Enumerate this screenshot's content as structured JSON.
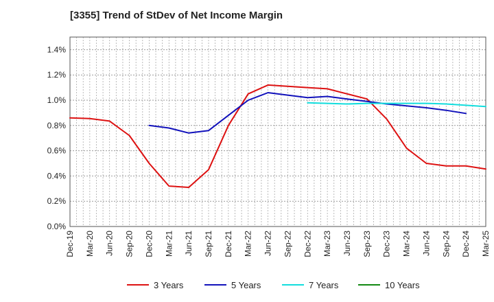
{
  "title": "[3355]  Trend of StDev of Net Income Margin",
  "chart_data": {
    "type": "line",
    "title": "[3355]  Trend of StDev of Net Income Margin",
    "xlabel": "",
    "ylabel": "",
    "ylim": [
      0,
      1.5
    ],
    "y_ticks": [
      0,
      0.2,
      0.4,
      0.6,
      0.8,
      1.0,
      1.2,
      1.4
    ],
    "y_tick_labels": [
      "0.0%",
      "0.2%",
      "0.4%",
      "0.6%",
      "0.8%",
      "1.0%",
      "1.2%",
      "1.4%"
    ],
    "x_tick_labels": [
      "Dec-19",
      "Mar-20",
      "Jun-20",
      "Sep-20",
      "Dec-20",
      "Mar-21",
      "Jun-21",
      "Sep-21",
      "Dec-21",
      "Mar-22",
      "Jun-22",
      "Sep-22",
      "Dec-22",
      "Mar-23",
      "Jun-23",
      "Sep-23",
      "Dec-23",
      "Mar-24",
      "Jun-24",
      "Sep-24",
      "Dec-24",
      "Mar-25"
    ],
    "grid": true,
    "legend_position": "bottom",
    "series": [
      {
        "name": "3 Years",
        "color": "#dd1111",
        "values": [
          0.86,
          0.855,
          0.835,
          0.72,
          0.5,
          0.32,
          0.31,
          0.45,
          0.8,
          1.05,
          1.12,
          1.11,
          1.1,
          1.09,
          1.05,
          1.01,
          0.85,
          0.62,
          0.5,
          0.48,
          0.48,
          0.455
        ],
        "start_index": 0
      },
      {
        "name": "5 Years",
        "color": "#1111bb",
        "values": [
          0.8,
          0.78,
          0.74,
          0.76,
          0.88,
          1.0,
          1.06,
          1.04,
          1.02,
          1.03,
          1.01,
          0.99,
          0.97,
          0.955,
          0.94,
          0.92,
          0.895
        ],
        "start_index": 4
      },
      {
        "name": "7 Years",
        "color": "#11dddd",
        "values": [
          0.98,
          0.975,
          0.97,
          0.975,
          0.975,
          0.975,
          0.975,
          0.97,
          0.96,
          0.95
        ],
        "start_index": 12
      },
      {
        "name": "10 Years",
        "color": "#118811",
        "values": [],
        "start_index": 0
      }
    ]
  }
}
